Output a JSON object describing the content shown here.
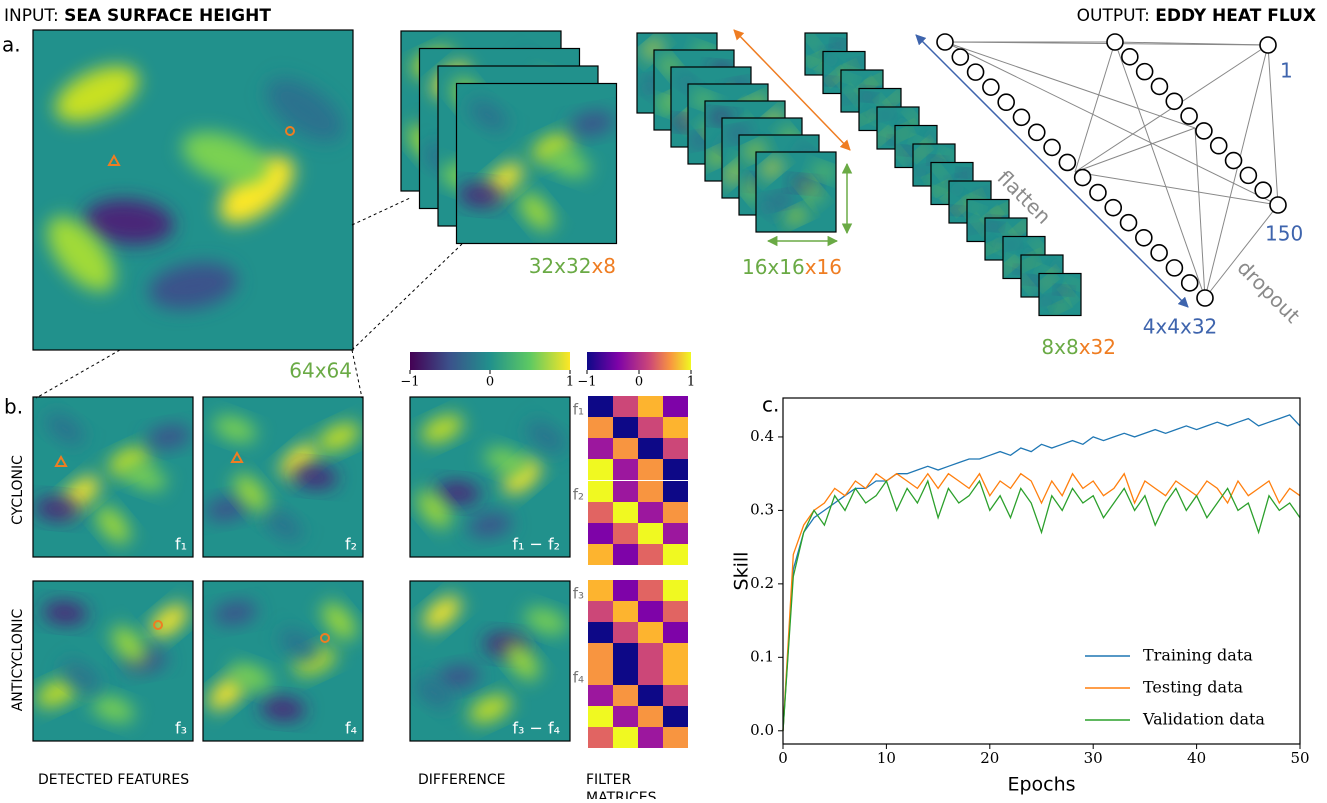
{
  "panel_a": {
    "label": "a.",
    "input_title": "INPUT: ",
    "input_bold": "SEA SURFACE HEIGHT",
    "output_title": "OUTPUT: ",
    "output_bold": "EDDY HEAT FLUX",
    "input_size": "64x64",
    "conv1_size": "32x32",
    "conv1_depth": "x8",
    "conv2_size": "16x16",
    "conv2_depth": "x16",
    "conv3_size": "8x8",
    "conv3_depth": "x32",
    "flatten": "flatten",
    "flat_size": "4x4x32",
    "dense": "150",
    "output": "1",
    "dropout": "dropout"
  },
  "panel_b": {
    "label": "b.",
    "rows": [
      "CYCLONIC",
      "ANTICYCLONIC"
    ],
    "features": [
      "f₁",
      "f₂",
      "f₃",
      "f₄"
    ],
    "differences": [
      "f₁ − f₂",
      "f₃ − f₄"
    ],
    "filters": [
      "f₁",
      "f₂",
      "f₃",
      "f₄"
    ],
    "colorbar_ticks": [
      {
        "value": -1,
        "label": "−1"
      },
      0,
      1
    ],
    "captions": [
      "DETECTED FEATURES",
      "DIFFERENCE",
      "FILTER MATRICES"
    ]
  },
  "chart_data": {
    "type": "line",
    "label": "c.",
    "x_label": "Epochs",
    "y_label": "Skill",
    "x": [
      0,
      1,
      2,
      3,
      4,
      5,
      6,
      7,
      8,
      9,
      10,
      11,
      12,
      13,
      14,
      15,
      16,
      17,
      18,
      19,
      20,
      21,
      22,
      23,
      24,
      25,
      26,
      27,
      28,
      29,
      30,
      31,
      32,
      33,
      34,
      35,
      36,
      37,
      38,
      39,
      40,
      41,
      42,
      43,
      44,
      45,
      46,
      47,
      48,
      49,
      50
    ],
    "series": [
      {
        "name": "Training data",
        "color": "#1f77b4",
        "values": [
          0.0,
          0.22,
          0.27,
          0.29,
          0.3,
          0.31,
          0.32,
          0.33,
          0.33,
          0.34,
          0.34,
          0.35,
          0.35,
          0.355,
          0.36,
          0.355,
          0.36,
          0.365,
          0.37,
          0.37,
          0.375,
          0.38,
          0.375,
          0.385,
          0.38,
          0.39,
          0.385,
          0.39,
          0.395,
          0.39,
          0.4,
          0.395,
          0.4,
          0.405,
          0.4,
          0.405,
          0.41,
          0.405,
          0.41,
          0.415,
          0.41,
          0.415,
          0.42,
          0.415,
          0.42,
          0.425,
          0.415,
          0.42,
          0.425,
          0.43,
          0.415
        ]
      },
      {
        "name": "Testing data",
        "color": "#ff7f0e",
        "values": [
          0.0,
          0.24,
          0.28,
          0.3,
          0.31,
          0.33,
          0.32,
          0.34,
          0.33,
          0.35,
          0.34,
          0.35,
          0.34,
          0.33,
          0.35,
          0.33,
          0.35,
          0.34,
          0.33,
          0.35,
          0.32,
          0.34,
          0.33,
          0.35,
          0.34,
          0.31,
          0.34,
          0.32,
          0.35,
          0.33,
          0.34,
          0.32,
          0.33,
          0.35,
          0.31,
          0.34,
          0.33,
          0.32,
          0.34,
          0.33,
          0.32,
          0.34,
          0.33,
          0.31,
          0.34,
          0.32,
          0.33,
          0.34,
          0.31,
          0.33,
          0.32
        ]
      },
      {
        "name": "Validation data",
        "color": "#2ca02c",
        "values": [
          0.0,
          0.21,
          0.27,
          0.3,
          0.28,
          0.32,
          0.3,
          0.33,
          0.31,
          0.32,
          0.34,
          0.3,
          0.33,
          0.31,
          0.34,
          0.29,
          0.33,
          0.31,
          0.32,
          0.34,
          0.3,
          0.32,
          0.29,
          0.33,
          0.31,
          0.27,
          0.32,
          0.3,
          0.33,
          0.31,
          0.32,
          0.29,
          0.31,
          0.33,
          0.3,
          0.32,
          0.28,
          0.31,
          0.33,
          0.3,
          0.32,
          0.29,
          0.31,
          0.33,
          0.3,
          0.31,
          0.27,
          0.32,
          0.3,
          0.31,
          0.29
        ]
      }
    ],
    "xlim": [
      0,
      50
    ],
    "ylim": [
      -0.018,
      0.453
    ],
    "xticks": [
      0,
      10,
      20,
      30,
      40,
      50
    ],
    "yticks": [
      {
        "value": 0,
        "label": "0.0"
      },
      0.1,
      0.2,
      0.3,
      0.4
    ],
    "legend": "lower right"
  }
}
